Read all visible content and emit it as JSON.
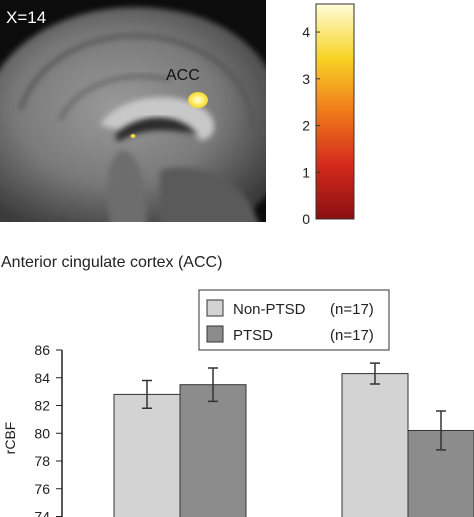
{
  "figure": {
    "slice_label": "X=14",
    "roi_label": "ACC",
    "section_title": "Anterior cingulate cortex (ACC)"
  },
  "colorbar": {
    "ticks": [
      "4",
      "3",
      "2",
      "1",
      "0"
    ],
    "range": [
      0,
      4.6
    ],
    "colors": [
      "#8b0f12",
      "#d42a1c",
      "#f07a1a",
      "#f8d426",
      "#fffcd8"
    ]
  },
  "chart_data": {
    "type": "bar",
    "ylabel": "rCBF",
    "xlabel": "",
    "ylim": [
      74,
      86
    ],
    "yticks": [
      "86",
      "84",
      "82",
      "80",
      "78",
      "76",
      "74"
    ],
    "groups": 2,
    "series": [
      {
        "name": "Non-PTSD",
        "n_label": "(n=17)",
        "color": "#d3d3d3",
        "values": [
          82.8,
          84.3
        ],
        "errors": [
          1.0,
          0.75
        ]
      },
      {
        "name": "PTSD",
        "n_label": "(n=17)",
        "color": "#8c8c8c",
        "values": [
          83.5,
          80.2
        ],
        "errors": [
          1.2,
          1.4
        ]
      }
    ]
  }
}
